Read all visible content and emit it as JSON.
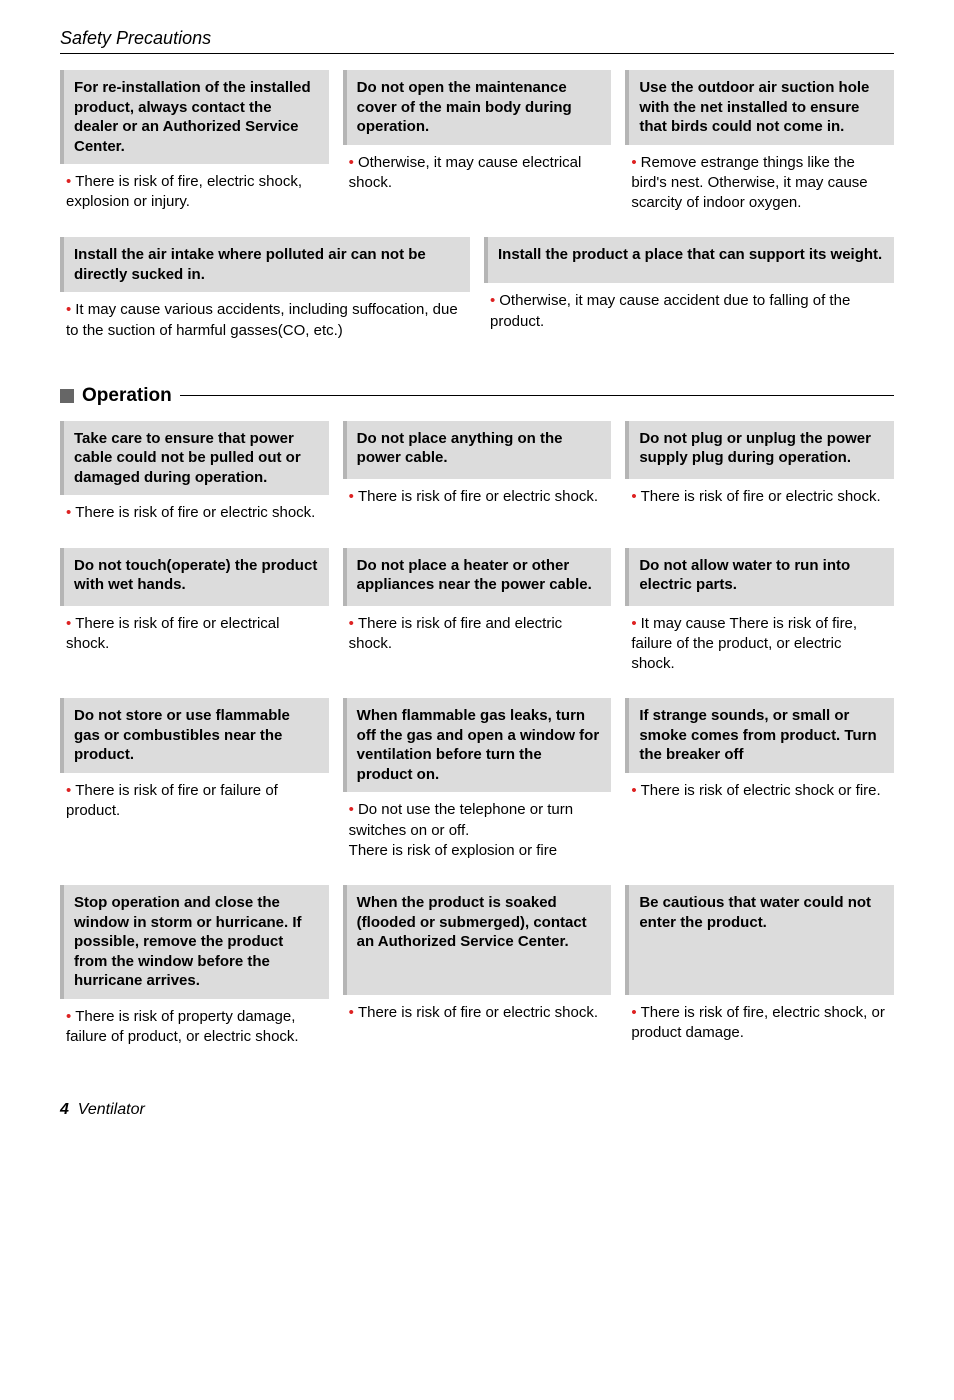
{
  "page": {
    "section_title": "Safety Precautions",
    "footer_page": "4",
    "footer_label": "Ventilator"
  },
  "top_row": [
    {
      "header": "For re-installation of the installed product, always contact the dealer or an Authorized Service Center.",
      "body": "There is risk of fire, electric shock, explosion or injury."
    },
    {
      "header": "Do not open the maintenance cover of the main body during operation.",
      "body": "Otherwise, it may cause electrical shock."
    },
    {
      "header": "Use the outdoor air suction hole with the net installed to ensure that birds could not come in.",
      "body": "Remove estrange things like the bird's nest. Otherwise, it may cause scarcity of indoor oxygen."
    }
  ],
  "mid_row": [
    {
      "header": "Install the air intake where polluted air can not be directly sucked in.",
      "body": "It may cause various accidents, including suffocation, due to the suction of harmful gasses(CO, etc.)"
    },
    {
      "header": "Install the product a place that can support its weight.",
      "body": "Otherwise, it may cause accident due to falling of the product."
    }
  ],
  "operation_heading": "Operation",
  "op_rows": [
    [
      {
        "header": "Take care to ensure that power cable could not be pulled out or damaged during operation.",
        "body": "There is risk of fire or electric shock."
      },
      {
        "header": "Do not place anything on the power cable.",
        "body": "There is risk of fire or electric shock."
      },
      {
        "header": "Do not plug or unplug the power supply plug during operation.",
        "body": "There is risk of fire or electric shock."
      }
    ],
    [
      {
        "header": "Do not touch(operate) the product with wet hands.",
        "body": "There is risk of fire or electrical shock."
      },
      {
        "header": "Do not place a heater or other appliances near the power cable.",
        "body": "There is risk of fire and electric shock."
      },
      {
        "header": "Do not allow water to run into electric parts.",
        "body": "It may cause  There is risk of fire, failure of the product, or electric shock."
      }
    ],
    [
      {
        "header": "Do not store or use flammable gas or combustibles near the product.",
        "body": "There is risk of fire or failure of product."
      },
      {
        "header": "When flammable gas leaks, turn off the gas and open a window for ventilation before turn the product on.",
        "body": "Do not use the telephone or turn switches on or off.\nThere is risk of explosion or fire"
      },
      {
        "header": "If strange sounds, or small or smoke comes from product. Turn the breaker off",
        "body": "There is risk of electric shock or fire."
      }
    ],
    [
      {
        "header": "Stop operation and close the window in storm or hurricane. If possible, remove the product from the window before the hurricane arrives.",
        "body": "There is risk of property damage, failure of product, or electric shock."
      },
      {
        "header": "When the product is soaked (flooded or submerged), contact an Authorized Service Center.",
        "body": "There is risk of fire or electric shock."
      },
      {
        "header": "Be cautious that water could not enter the product.",
        "body": "There is risk of fire, electric shock, or product damage."
      }
    ]
  ],
  "colors": {
    "header_bg": "#dcdcdc",
    "header_border": "#b5b5b5",
    "bullet": "#d22",
    "op_square": "#666"
  }
}
